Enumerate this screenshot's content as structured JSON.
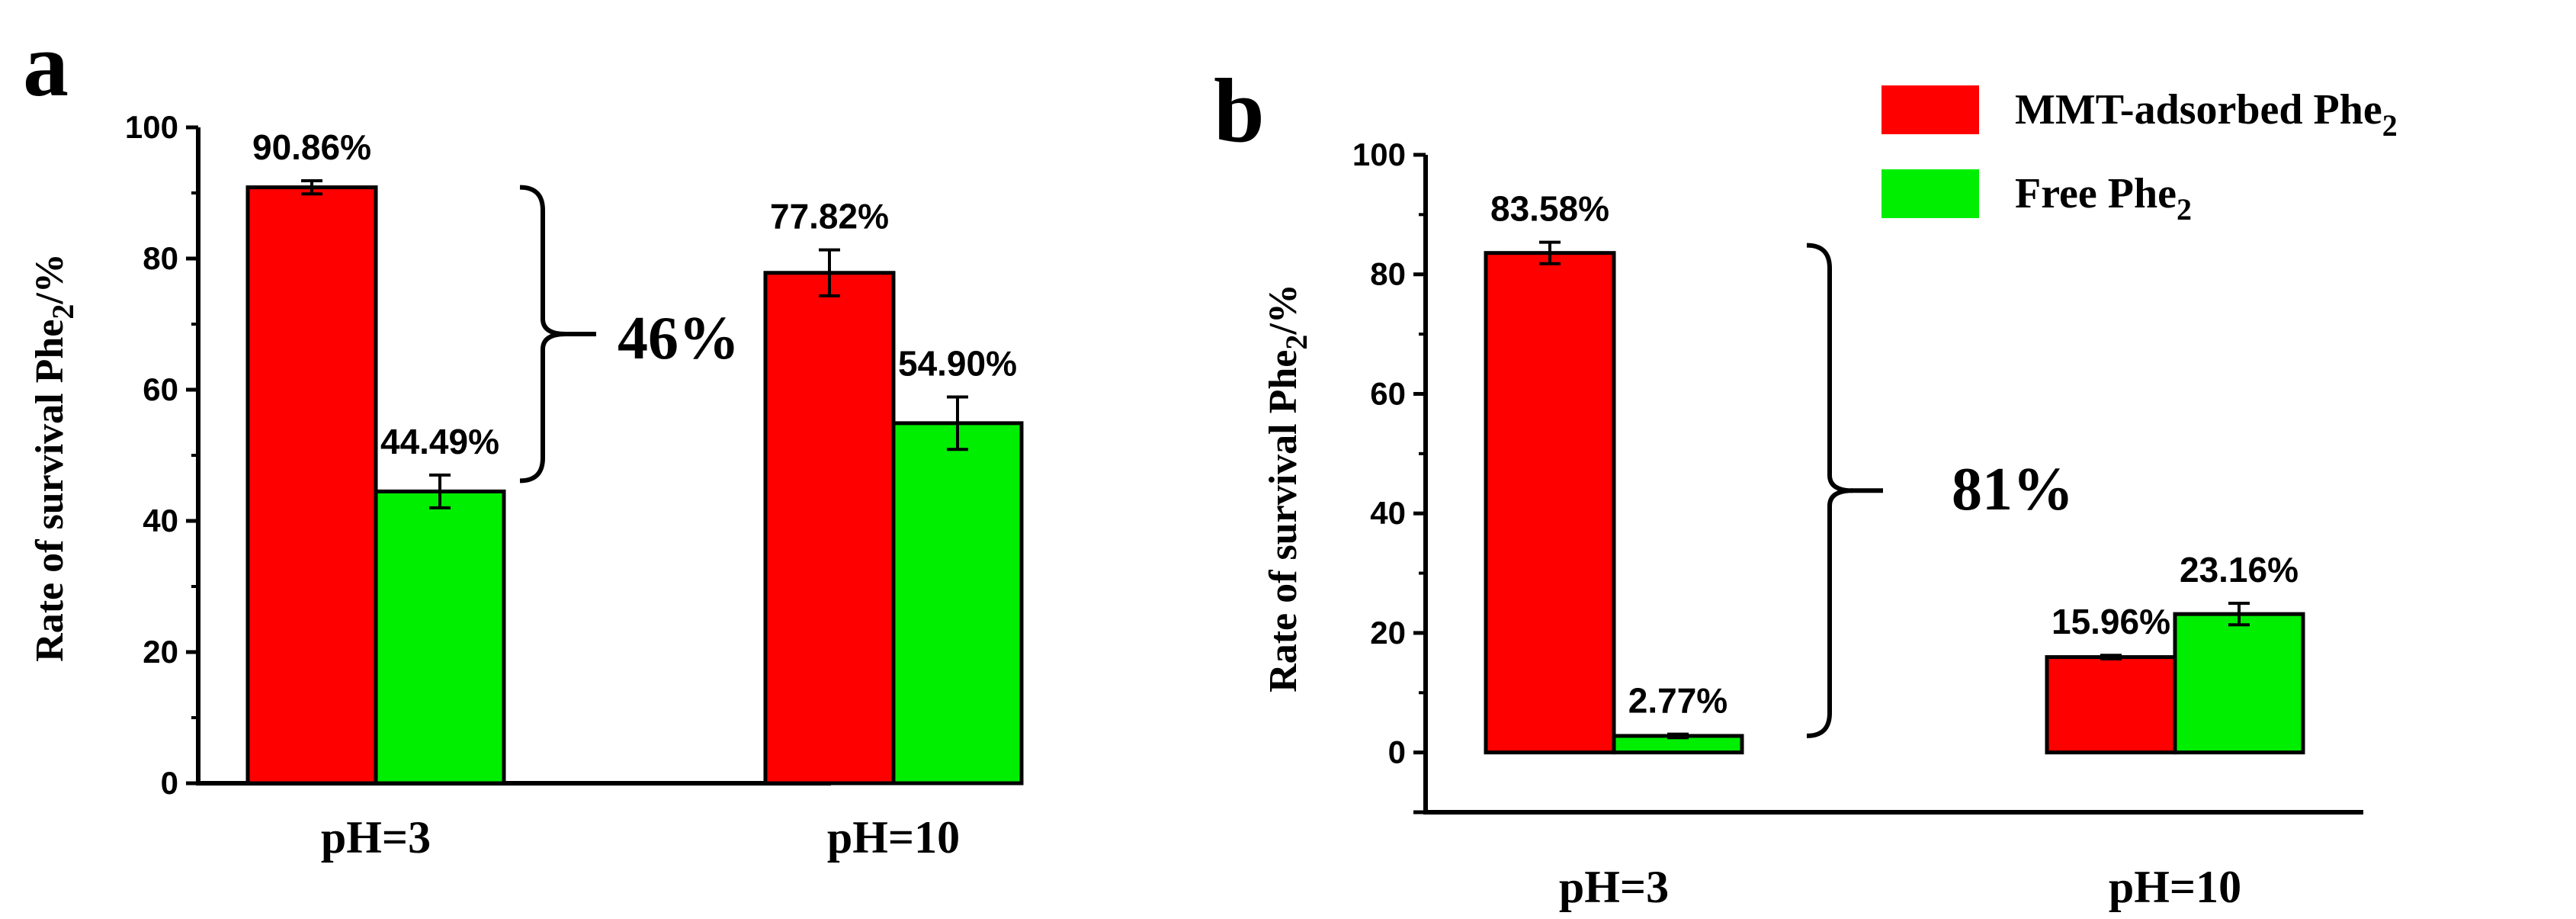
{
  "legend": {
    "position": "top-right",
    "entries": [
      {
        "name": "MMT-adsorbed Phe",
        "sub": "2",
        "color": "#ff0000"
      },
      {
        "name": "Free Phe",
        "sub": "2",
        "color": "#00ee00"
      }
    ]
  },
  "chart_data": [
    {
      "panel": "a",
      "type": "bar",
      "categories": [
        "pH=3",
        "pH=10"
      ],
      "series": [
        {
          "name": "MMT-adsorbed Phe2",
          "color": "#ff0000",
          "values": [
            90.86,
            77.82
          ],
          "errors": [
            1.0,
            3.5
          ],
          "labels": [
            "90.86%",
            "77.82%"
          ]
        },
        {
          "name": "Free Phe2",
          "color": "#00ee00",
          "values": [
            44.49,
            54.9
          ],
          "errors": [
            2.5,
            4.0
          ],
          "labels": [
            "44.49%",
            "54.90%"
          ]
        }
      ],
      "ylabel": {
        "main": "Rate of survival  Phe",
        "sub": "2",
        "tail": "/%"
      },
      "ylim": [
        0,
        100
      ],
      "yticks": [
        0,
        20,
        40,
        60,
        80,
        100
      ],
      "annotation": {
        "text": "46%",
        "from": 90.86,
        "to": 44.49
      }
    },
    {
      "panel": "b",
      "type": "bar",
      "categories": [
        "pH=3",
        "pH=10"
      ],
      "series": [
        {
          "name": "MMT-adsorbed Phe2",
          "color": "#ff0000",
          "values": [
            83.58,
            15.96
          ],
          "errors": [
            1.8,
            0.3
          ],
          "labels": [
            "83.58%",
            "15.96%"
          ]
        },
        {
          "name": "Free Phe2",
          "color": "#00ee00",
          "values": [
            2.77,
            23.16
          ],
          "errors": [
            0.3,
            1.8
          ],
          "labels": [
            "2.77%",
            "23.16%"
          ]
        }
      ],
      "ylabel": {
        "main": "Rate of survival  Phe",
        "sub": "2",
        "tail": "/%"
      },
      "ylim": [
        -10,
        100
      ],
      "yticks": [
        0,
        20,
        40,
        60,
        80,
        100
      ],
      "annotation": {
        "text": "81%",
        "from": 83.58,
        "to": 2.77
      }
    }
  ]
}
